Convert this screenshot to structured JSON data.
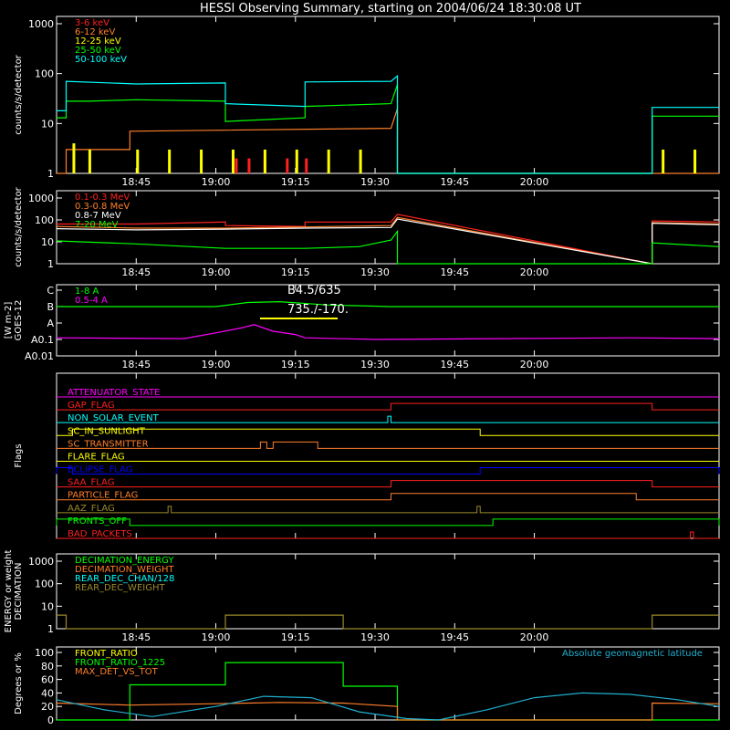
{
  "title": "HESSI Observing Summary, starting on 2004/06/24 18:30:08 UT",
  "time_ticks": [
    "18:45",
    "19:00",
    "19:15",
    "19:30",
    "19:45",
    "20:00"
  ],
  "chart_data": [
    {
      "id": "p1",
      "type": "line",
      "ylabel": "counts/s/detector",
      "log": true,
      "ylim": [
        1,
        1000
      ],
      "yticks": [
        "1",
        "10",
        "100",
        "1000"
      ],
      "show_xticks": true,
      "series": [
        {
          "name": "3-6 keV",
          "color": "#ff2020",
          "style": "bars",
          "x": [
            19.06,
            19.1,
            19.15,
            19.22,
            19.28
          ],
          "values": [
            2,
            2,
            2,
            2,
            2
          ]
        },
        {
          "name": "6-12 keV",
          "color": "#ff7f2a",
          "style": "line",
          "x": [
            18.5,
            18.53,
            18.53,
            18.73,
            18.73,
            19.55,
            19.57,
            19.57,
            20.37,
            20.37,
            20.58
          ],
          "values": [
            1,
            1,
            3,
            3,
            7,
            8,
            20,
            1,
            1,
            1,
            1
          ]
        },
        {
          "name": "12-25 keV",
          "color": "#ffff00",
          "style": "bars",
          "x": [
            18.55,
            18.6,
            18.75,
            18.85,
            18.95,
            19.05,
            19.15,
            19.25,
            19.35,
            19.45,
            20.4,
            20.5
          ],
          "values": [
            4,
            3,
            3,
            3,
            3,
            3,
            3,
            3,
            3,
            3,
            3,
            3
          ]
        },
        {
          "name": "25-50 keV",
          "color": "#00ff00",
          "style": "line",
          "x": [
            18.5,
            18.53,
            18.53,
            18.6,
            18.75,
            19.03,
            19.03,
            19.28,
            19.28,
            19.55,
            19.57,
            19.57,
            20.37,
            20.37,
            20.58
          ],
          "values": [
            13,
            13,
            28,
            28,
            30,
            28,
            11,
            13,
            22,
            25,
            60,
            1,
            1,
            14,
            14
          ]
        },
        {
          "name": "50-100 keV",
          "color": "#00ffff",
          "style": "line",
          "x": [
            18.5,
            18.53,
            18.53,
            18.75,
            19.03,
            19.03,
            19.28,
            19.28,
            19.55,
            19.57,
            19.57,
            20.37,
            20.37,
            20.58
          ],
          "values": [
            18,
            18,
            70,
            62,
            65,
            25,
            22,
            68,
            70,
            90,
            1,
            1,
            21,
            21
          ]
        }
      ]
    },
    {
      "id": "p2",
      "type": "line",
      "ylabel": "counts/s/detector",
      "log": true,
      "ylim": [
        1,
        1000
      ],
      "yticks": [
        "1",
        "10",
        "100",
        "1000"
      ],
      "show_xticks": true,
      "series": [
        {
          "name": "0.1-0.3 MeV",
          "color": "#ff2020",
          "style": "line",
          "x": [
            18.5,
            18.75,
            19.03,
            19.03,
            19.28,
            19.28,
            19.55,
            19.57,
            20.37,
            20.37,
            20.58
          ],
          "values": [
            65,
            65,
            80,
            55,
            50,
            80,
            80,
            180,
            1,
            90,
            80
          ]
        },
        {
          "name": "0.3-0.8 MeV",
          "color": "#ff7f2a",
          "style": "line",
          "x": [
            18.5,
            18.75,
            19.03,
            19.28,
            19.55,
            19.57,
            20.37,
            20.37,
            20.58
          ],
          "values": [
            50,
            42,
            42,
            48,
            55,
            130,
            1,
            75,
            65
          ]
        },
        {
          "name": "0.8-7 MeV",
          "color": "#ffffff",
          "style": "line",
          "x": [
            18.5,
            18.75,
            19.03,
            19.28,
            19.55,
            19.57,
            20.37,
            20.37,
            20.58
          ],
          "values": [
            40,
            35,
            38,
            42,
            45,
            110,
            1,
            70,
            60
          ]
        },
        {
          "name": "7-20 MeV",
          "color": "#00ff00",
          "style": "line",
          "x": [
            18.5,
            18.75,
            19.03,
            19.28,
            19.45,
            19.55,
            19.57,
            19.57,
            20.37,
            20.37,
            20.58
          ],
          "values": [
            11,
            8,
            5,
            5,
            6,
            12,
            30,
            1,
            1,
            9,
            6
          ]
        }
      ]
    },
    {
      "id": "p3",
      "type": "line",
      "ylabel": "GOES-12",
      "ylabel2": "[W m-2]",
      "ylim": [
        0,
        4
      ],
      "yticks": [
        "A0.01",
        "A0.1",
        "A",
        "B",
        "C"
      ],
      "show_xticks": true,
      "annotations": [
        "B4.5/635",
        "735./-170."
      ],
      "series": [
        {
          "name": "1-8 A",
          "color": "#00ff00",
          "style": "line",
          "x": [
            18.5,
            19.0,
            19.1,
            19.2,
            19.35,
            19.55,
            20.58
          ],
          "values": [
            3.0,
            3.0,
            3.25,
            3.3,
            3.1,
            3.0,
            3.0
          ]
        },
        {
          "name": "0.5-4 A",
          "color": "#ff00ff",
          "style": "line",
          "x": [
            18.5,
            18.9,
            19.0,
            19.08,
            19.12,
            19.18,
            19.25,
            19.28,
            19.5,
            20.3,
            20.58
          ],
          "values": [
            1.1,
            1.05,
            1.4,
            1.7,
            1.9,
            1.5,
            1.3,
            1.1,
            1.0,
            1.1,
            1.05
          ]
        }
      ]
    },
    {
      "id": "p4",
      "type": "line",
      "ylabel": "Flags",
      "show_xticks": false,
      "flags": [
        {
          "name": "ATTENUATOR_STATE",
          "color": "#ff00ff",
          "on": []
        },
        {
          "name": "GAP_FLAG",
          "color": "#ff2020",
          "on": [
            [
              19.55,
              20.37
            ]
          ]
        },
        {
          "name": "NON_SOLAR_EVENT",
          "color": "#00ffff",
          "on": [
            [
              19.54,
              19.55
            ]
          ]
        },
        {
          "name": "SC_IN_SUNLIGHT",
          "color": "#ffff00",
          "on": [
            [
              18.55,
              19.83
            ]
          ]
        },
        {
          "name": "SC_TRANSMITTER",
          "color": "#ff7f2a",
          "on": [
            [
              19.14,
              19.16
            ],
            [
              19.18,
              19.32
            ]
          ]
        },
        {
          "name": "FLARE_FLAG",
          "color": "#ffff00",
          "on": []
        },
        {
          "name": "ECLIPSE_FLAG",
          "color": "#0000ff",
          "on": [
            [
              18.5,
              18.55
            ],
            [
              19.83,
              20.58
            ]
          ]
        },
        {
          "name": "SAA_FLAG",
          "color": "#ff2020",
          "on": [
            [
              19.55,
              20.37
            ]
          ]
        },
        {
          "name": "PARTICLE_FLAG",
          "color": "#ff7f2a",
          "on": [
            [
              19.55,
              20.32
            ]
          ]
        },
        {
          "name": "AAZ_FLAG",
          "color": "#9a8a2a",
          "on": [
            [
              18.85,
              18.86
            ],
            [
              19.82,
              19.83
            ]
          ]
        },
        {
          "name": "FRONTS_OFF",
          "color": "#00ff00",
          "on": [
            [
              18.5,
              18.73
            ],
            [
              19.87,
              20.58
            ]
          ]
        },
        {
          "name": "BAD_PACKETS",
          "color": "#ff2020",
          "on": [
            [
              20.49,
              20.5
            ]
          ]
        }
      ]
    },
    {
      "id": "p5",
      "type": "line",
      "ylabel": "DECIMATION",
      "ylabel2": "ENERGY or weight",
      "log": true,
      "ylim": [
        1,
        1000
      ],
      "yticks": [
        "1",
        "10",
        "100",
        "1000"
      ],
      "show_xticks": true,
      "series": [
        {
          "name": "DECIMATION_ENERGY",
          "color": "#00ff00",
          "style": "none",
          "x": [],
          "values": []
        },
        {
          "name": "DECIMATION_WEIGHT",
          "color": "#ff7f2a",
          "style": "none",
          "x": [],
          "values": []
        },
        {
          "name": "REAR_DEC_CHAN/128",
          "color": "#00ffff",
          "style": "none",
          "x": [],
          "values": []
        },
        {
          "name": "REAR_DEC_WEIGHT",
          "color": "#9a8a2a",
          "style": "line",
          "x": [
            18.5,
            18.53,
            18.53,
            19.03,
            19.03,
            19.4,
            19.4,
            20.37,
            20.37,
            20.58
          ],
          "values": [
            4,
            4,
            1,
            1,
            4,
            4,
            1,
            1,
            4,
            4
          ]
        }
      ]
    },
    {
      "id": "p6",
      "type": "line",
      "ylabel": "Degrees or %",
      "ylim": [
        0,
        100
      ],
      "yticks": [
        "0",
        "20",
        "40",
        "60",
        "80",
        "100"
      ],
      "show_xticks": false,
      "right_label": "Absolute geomagnetic latitude",
      "series": [
        {
          "name": "FRONT_RATIO",
          "color": "#ffff00",
          "style": "none",
          "x": [],
          "values": []
        },
        {
          "name": "FRONT_RATIO_1225",
          "color": "#00ff00",
          "style": "line",
          "x": [
            18.5,
            18.73,
            18.73,
            19.03,
            19.03,
            19.4,
            19.4,
            19.57,
            19.57,
            20.58
          ],
          "values": [
            0,
            0,
            52,
            52,
            85,
            85,
            50,
            50,
            0,
            0
          ]
        },
        {
          "name": "MAX_DET_VS_TOT",
          "color": "#ff7f2a",
          "style": "line",
          "x": [
            18.5,
            18.73,
            19.0,
            19.2,
            19.4,
            19.57,
            19.57,
            20.37,
            20.37,
            20.58
          ],
          "values": [
            25,
            22,
            24,
            26,
            25,
            20,
            0,
            0,
            25,
            24
          ]
        },
        {
          "name": "Absolute geomagnetic latitude",
          "color": "#20b0d0",
          "style": "line",
          "x": [
            18.5,
            18.65,
            18.8,
            19.0,
            19.15,
            19.3,
            19.45,
            19.6,
            19.7,
            19.85,
            20.0,
            20.15,
            20.3,
            20.45,
            20.58
          ],
          "values": [
            30,
            15,
            5,
            20,
            35,
            33,
            12,
            2,
            0,
            15,
            33,
            40,
            38,
            30,
            20
          ]
        }
      ]
    }
  ]
}
